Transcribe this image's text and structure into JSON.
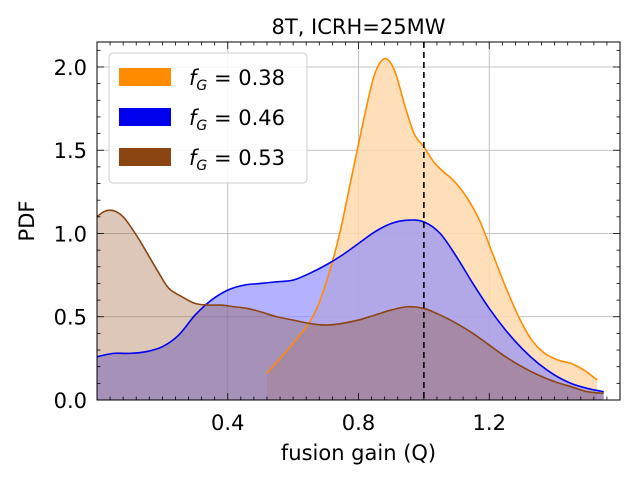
{
  "chart_data": {
    "type": "area",
    "title": "8T, ICRH=25MW",
    "xlabel": "fusion gain (Q)",
    "ylabel": "PDF",
    "xlim": [
      0.0,
      1.6
    ],
    "ylim": [
      0.0,
      2.15
    ],
    "xticks": [
      0.4,
      0.8,
      1.2
    ],
    "xtick_labels": [
      "0.4",
      "0.8",
      "1.2"
    ],
    "yticks": [
      0.0,
      0.5,
      1.0,
      1.5,
      2.0
    ],
    "ytick_labels": [
      "0.0",
      "0.5",
      "1.0",
      "1.5",
      "2.0"
    ],
    "grid": true,
    "legend_position": "top-left",
    "reference_line": {
      "x": 1.0,
      "style": "dashed",
      "color": "#000000"
    },
    "series": [
      {
        "name": "f_G = 0.38",
        "legend_symbol": "f",
        "legend_sub": "G",
        "legend_value": " = 0.38",
        "line_color": "#ff8c00",
        "fill_color": "#ffd9ad",
        "fill_opacity": 0.85,
        "points": [
          [
            0.52,
            0.16
          ],
          [
            0.6,
            0.34
          ],
          [
            0.66,
            0.5
          ],
          [
            0.7,
            0.7
          ],
          [
            0.74,
            0.98
          ],
          [
            0.78,
            1.35
          ],
          [
            0.82,
            1.72
          ],
          [
            0.85,
            1.96
          ],
          [
            0.88,
            2.05
          ],
          [
            0.91,
            1.98
          ],
          [
            0.94,
            1.78
          ],
          [
            0.97,
            1.6
          ],
          [
            1.0,
            1.52
          ],
          [
            1.03,
            1.43
          ],
          [
            1.06,
            1.37
          ],
          [
            1.09,
            1.32
          ],
          [
            1.13,
            1.22
          ],
          [
            1.17,
            1.08
          ],
          [
            1.21,
            0.88
          ],
          [
            1.25,
            0.68
          ],
          [
            1.29,
            0.5
          ],
          [
            1.33,
            0.36
          ],
          [
            1.37,
            0.28
          ],
          [
            1.41,
            0.24
          ],
          [
            1.45,
            0.22
          ],
          [
            1.49,
            0.18
          ],
          [
            1.53,
            0.12
          ]
        ]
      },
      {
        "name": "f_G = 0.46",
        "legend_symbol": "f",
        "legend_sub": "G",
        "legend_value": " = 0.46",
        "line_color": "#0000ee",
        "fill_color": "#8888ff",
        "fill_opacity": 0.65,
        "points": [
          [
            0.0,
            0.26
          ],
          [
            0.05,
            0.28
          ],
          [
            0.1,
            0.28
          ],
          [
            0.15,
            0.29
          ],
          [
            0.2,
            0.32
          ],
          [
            0.25,
            0.39
          ],
          [
            0.3,
            0.51
          ],
          [
            0.35,
            0.6
          ],
          [
            0.4,
            0.66
          ],
          [
            0.45,
            0.69
          ],
          [
            0.5,
            0.7
          ],
          [
            0.55,
            0.71
          ],
          [
            0.6,
            0.72
          ],
          [
            0.65,
            0.76
          ],
          [
            0.7,
            0.81
          ],
          [
            0.75,
            0.87
          ],
          [
            0.8,
            0.94
          ],
          [
            0.85,
            1.01
          ],
          [
            0.9,
            1.06
          ],
          [
            0.95,
            1.08
          ],
          [
            1.0,
            1.07
          ],
          [
            1.05,
            1.0
          ],
          [
            1.1,
            0.86
          ],
          [
            1.15,
            0.7
          ],
          [
            1.2,
            0.55
          ],
          [
            1.25,
            0.42
          ],
          [
            1.3,
            0.31
          ],
          [
            1.35,
            0.22
          ],
          [
            1.4,
            0.15
          ],
          [
            1.45,
            0.1
          ],
          [
            1.5,
            0.07
          ],
          [
            1.55,
            0.05
          ]
        ]
      },
      {
        "name": "f_G = 0.53",
        "legend_symbol": "f",
        "legend_sub": "G",
        "legend_value": " = 0.53",
        "line_color": "#8b4513",
        "fill_color": "#8b4513",
        "fill_opacity": 0.3,
        "points": [
          [
            0.0,
            1.1
          ],
          [
            0.02,
            1.13
          ],
          [
            0.04,
            1.14
          ],
          [
            0.06,
            1.13
          ],
          [
            0.08,
            1.1
          ],
          [
            0.1,
            1.05
          ],
          [
            0.13,
            0.96
          ],
          [
            0.16,
            0.86
          ],
          [
            0.19,
            0.76
          ],
          [
            0.22,
            0.67
          ],
          [
            0.26,
            0.62
          ],
          [
            0.3,
            0.58
          ],
          [
            0.34,
            0.57
          ],
          [
            0.38,
            0.57
          ],
          [
            0.42,
            0.56
          ],
          [
            0.46,
            0.55
          ],
          [
            0.5,
            0.53
          ],
          [
            0.55,
            0.5
          ],
          [
            0.6,
            0.48
          ],
          [
            0.65,
            0.46
          ],
          [
            0.7,
            0.45
          ],
          [
            0.75,
            0.46
          ],
          [
            0.8,
            0.48
          ],
          [
            0.85,
            0.51
          ],
          [
            0.9,
            0.54
          ],
          [
            0.95,
            0.56
          ],
          [
            1.0,
            0.55
          ],
          [
            1.05,
            0.51
          ],
          [
            1.1,
            0.46
          ],
          [
            1.15,
            0.4
          ],
          [
            1.2,
            0.33
          ],
          [
            1.25,
            0.26
          ],
          [
            1.3,
            0.2
          ],
          [
            1.35,
            0.15
          ],
          [
            1.4,
            0.11
          ],
          [
            1.45,
            0.08
          ],
          [
            1.5,
            0.05
          ],
          [
            1.55,
            0.04
          ]
        ]
      }
    ]
  }
}
